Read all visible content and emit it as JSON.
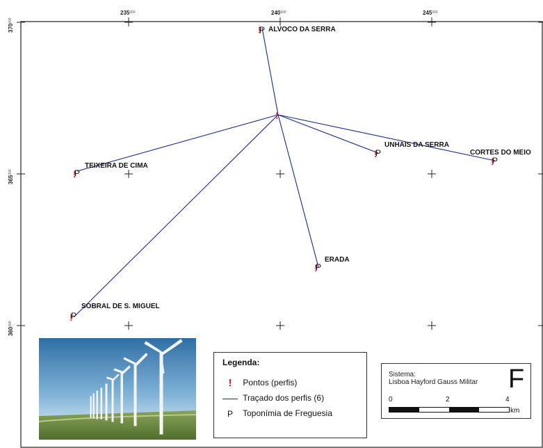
{
  "map": {
    "x_ticks": [
      {
        "label": "235",
        "sup": "000"
      },
      {
        "label": "240",
        "sup": "000"
      },
      {
        "label": "245",
        "sup": "000"
      }
    ],
    "y_ticks": [
      {
        "label": "370",
        "sup": "000"
      },
      {
        "label": "365",
        "sup": "000"
      },
      {
        "label": "360",
        "sup": "000"
      }
    ],
    "places": [
      {
        "id": "alvoco",
        "name": "ALVOCO DA SERRA"
      },
      {
        "id": "teixeira",
        "name": "TEIXEIRA DE CIMA"
      },
      {
        "id": "unhais",
        "name": "UNHAIS DA SERRA"
      },
      {
        "id": "cortes",
        "name": "CORTES DO MEIO"
      },
      {
        "id": "erada",
        "name": "ERADA"
      },
      {
        "id": "sobral",
        "name": "SOBRAL DE S. MIGUEL"
      }
    ],
    "profile_color": "#1a2a8a",
    "point_color": "#e31b23"
  },
  "legend": {
    "title": "Legenda:",
    "items": [
      {
        "symbol": "!",
        "label": "Pontos (perfis)"
      },
      {
        "symbol": "line",
        "label": "Traçado dos perfis (6)"
      },
      {
        "symbol": "P",
        "label": "Toponímia de Freguesia"
      }
    ]
  },
  "scale": {
    "system_label": "Sistema:",
    "system_name": "Lisboa Hayford Gauss Militar",
    "north_symbol": "F",
    "labels": [
      "0",
      "2",
      "4"
    ],
    "unit": "km"
  },
  "photo": {
    "subject": "wind-turbines"
  }
}
